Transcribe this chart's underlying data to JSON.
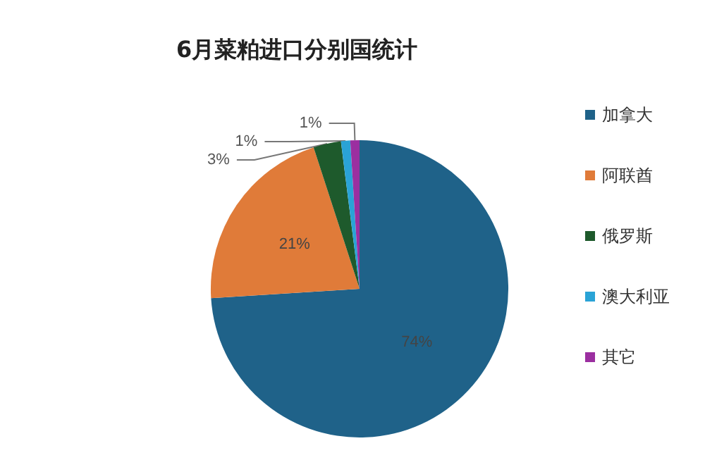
{
  "chart_data": {
    "type": "pie",
    "title": "6月菜粕进口分别国统计",
    "categories": [
      "加拿大",
      "阿联酋",
      "俄罗斯",
      "澳大利亚",
      "其它"
    ],
    "values": [
      74,
      21,
      3,
      1,
      1
    ],
    "value_labels": [
      "74%",
      "21%",
      "3%",
      "1%",
      "1%"
    ],
    "colors": [
      "#1f6289",
      "#e07b39",
      "#1e5a2c",
      "#2aa3d6",
      "#9b2fa0"
    ],
    "legend": "right"
  }
}
